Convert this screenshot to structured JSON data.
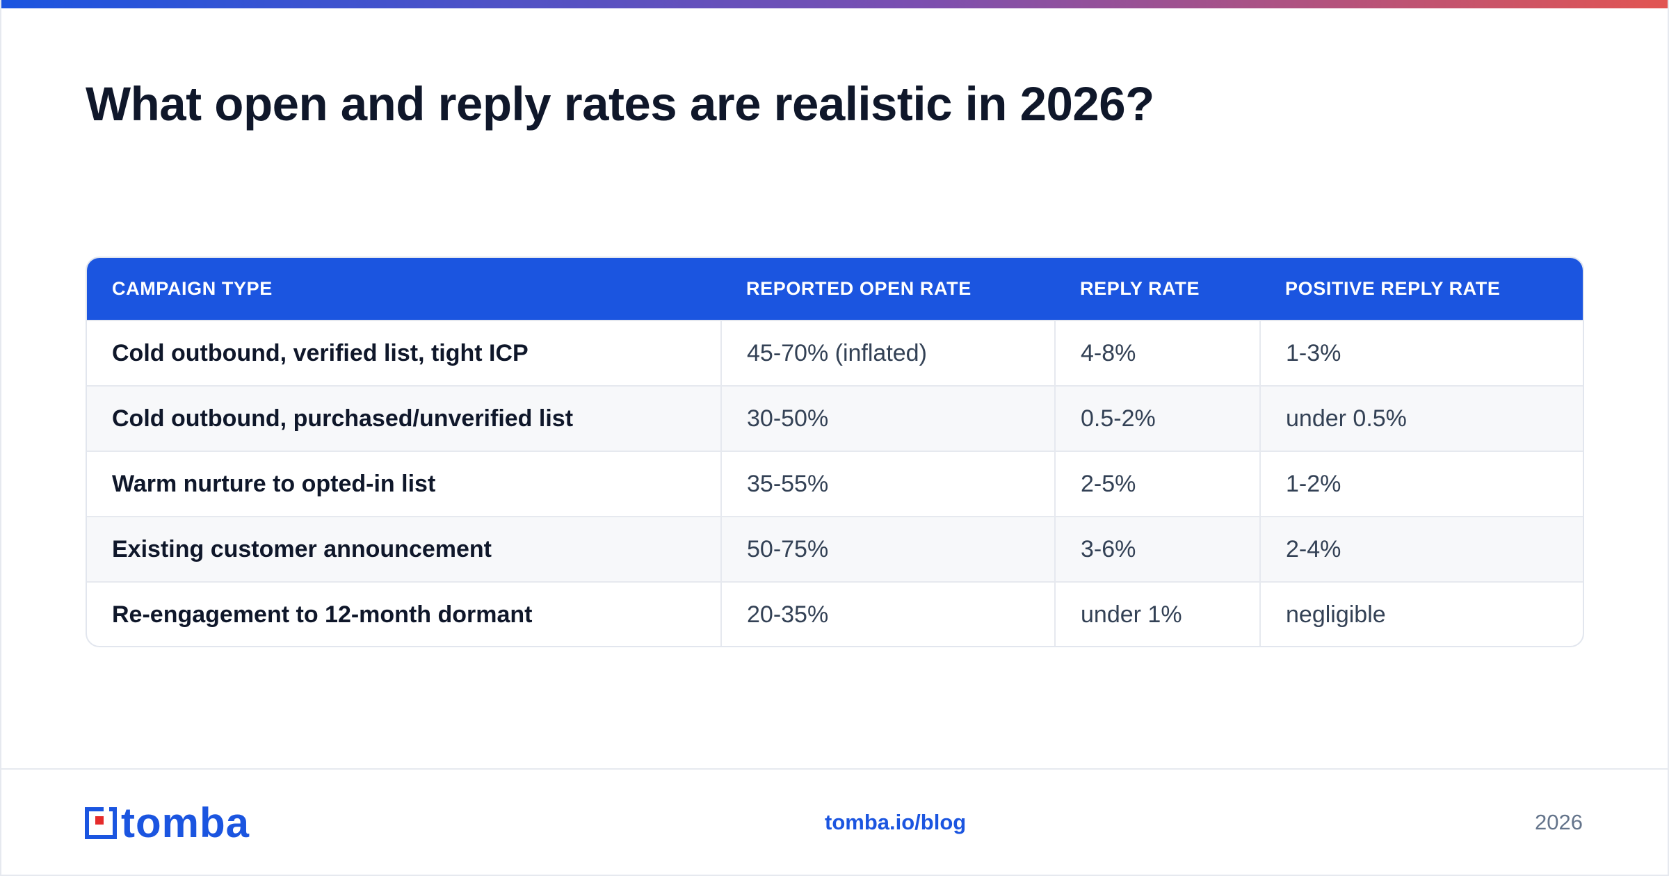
{
  "title": "What open and reply rates are realistic in 2026?",
  "colors": {
    "accent": "#1b55e0",
    "gradient_start": "#1b55e0",
    "gradient_end": "#e25552",
    "logo_red": "#e52b2b"
  },
  "table": {
    "headers": [
      "CAMPAIGN TYPE",
      "REPORTED OPEN RATE",
      "REPLY RATE",
      "POSITIVE REPLY RATE"
    ],
    "rows": [
      [
        "Cold outbound, verified list, tight ICP",
        "45-70% (inflated)",
        "4-8%",
        "1-3%"
      ],
      [
        "Cold outbound, purchased/unverified list",
        "30-50%",
        "0.5-2%",
        "under 0.5%"
      ],
      [
        "Warm nurture to opted-in list",
        "35-55%",
        "2-5%",
        "1-2%"
      ],
      [
        "Existing customer announcement",
        "50-75%",
        "3-6%",
        "2-4%"
      ],
      [
        "Re-engagement to 12-month dormant",
        "20-35%",
        "under 1%",
        "negligible"
      ]
    ]
  },
  "footer": {
    "logo_text": "tomba",
    "logo_icon": "tomba-logo-icon",
    "link": "tomba.io/blog",
    "year": "2026"
  }
}
